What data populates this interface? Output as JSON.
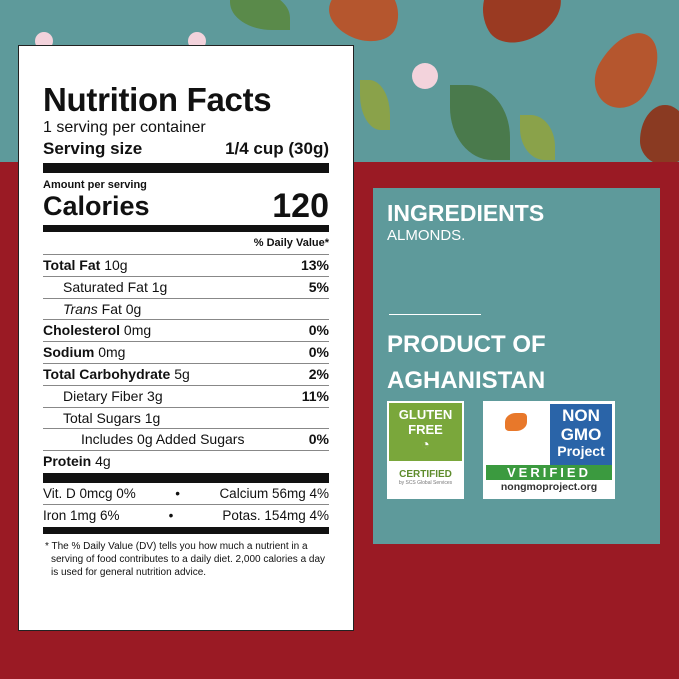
{
  "nutrition": {
    "title": "Nutrition Facts",
    "servings": "1 serving per container",
    "serving_size_label": "Serving size",
    "serving_size_value": "1/4 cup (30g)",
    "amount_per_serving": "Amount per serving",
    "calories_label": "Calories",
    "calories_value": "120",
    "dv_header": "% Daily Value*",
    "rows": [
      {
        "label": "Total Fat",
        "amount": "10g",
        "dv": "13%"
      },
      {
        "label": "Saturated Fat",
        "amount": "1g",
        "dv": "5%"
      },
      {
        "label": "Trans",
        "label2": "Fat",
        "amount": "0g",
        "dv": ""
      },
      {
        "label": "Cholesterol",
        "amount": "0mg",
        "dv": "0%"
      },
      {
        "label": "Sodium",
        "amount": "0mg",
        "dv": "0%"
      },
      {
        "label": "Total Carbohydrate",
        "amount": "5g",
        "dv": "2%"
      },
      {
        "label": "Dietary Fiber",
        "amount": "3g",
        "dv": "11%"
      },
      {
        "label": "Total Sugars",
        "amount": "1g",
        "dv": ""
      },
      {
        "label": "Includes 0g Added Sugars",
        "amount": "",
        "dv": "0%"
      },
      {
        "label": "Protein",
        "amount": "4g",
        "dv": ""
      }
    ],
    "vitamins": [
      {
        "left": "Vit. D 0mcg 0%",
        "right": "Calcium 56mg 4%"
      },
      {
        "left": "Iron 1mg 6%",
        "right": "Potas. 154mg 4%"
      }
    ],
    "separator": "•",
    "footnote": "* The % Daily Value (DV) tells you how much a nutrient in a serving of food contributes to a daily diet. 2,000 calories a day is used for general nutrition advice."
  },
  "ingredients": {
    "heading": "INGREDIENTS",
    "text": "ALMONDS.",
    "origin_line1": "PRODUCT OF",
    "origin_line2": "AGHANISTAN"
  },
  "badges": {
    "gluten_free": {
      "line1": "GLUTEN",
      "line2": "FREE",
      "certified": "CERTIFIED",
      "by": "by SCS Global Services"
    },
    "non_gmo": {
      "line1": "NON",
      "line2": "GMO",
      "line3": "Project",
      "verified": "VERIFIED",
      "url": "nongmoproject.org"
    }
  },
  "colors": {
    "teal": "#5e9a9b",
    "red": "#9a1a24",
    "green": "#7aa73b",
    "blue": "#2a64a8"
  }
}
